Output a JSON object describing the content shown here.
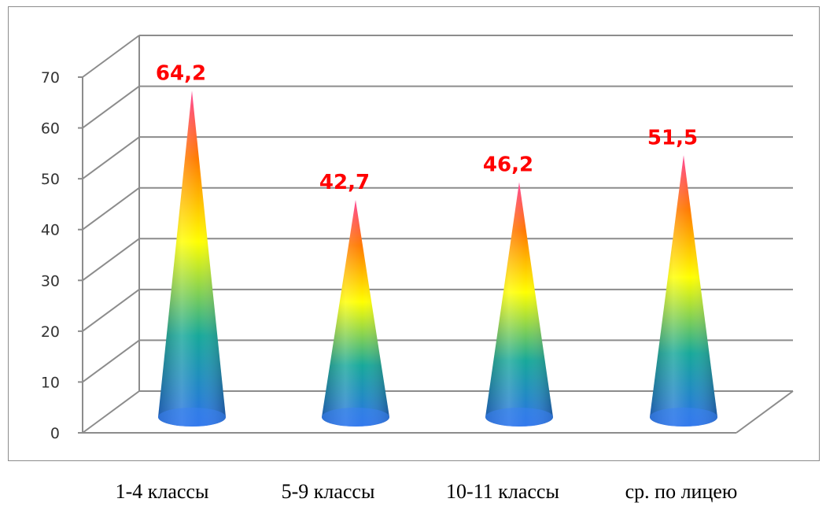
{
  "chart_data": {
    "type": "bar",
    "categories": [
      "1-4 классы",
      "5-9 классы",
      "10-11 классы",
      "ср. по лицею"
    ],
    "values": [
      64.2,
      42.7,
      46.2,
      51.5
    ],
    "data_labels": [
      "64,2",
      "42,7",
      "46,2",
      "51,5"
    ],
    "yticks": [
      0,
      10,
      20,
      30,
      40,
      50,
      60,
      70
    ],
    "ylim": [
      0,
      70
    ],
    "grid": true,
    "colors": {
      "label": "#ff0000",
      "grid": "#8c8c8c",
      "gradient": [
        "#2a6fe8",
        "#17a89a",
        "#ffff00",
        "#ff7a00",
        "#ff3a8c"
      ]
    }
  }
}
